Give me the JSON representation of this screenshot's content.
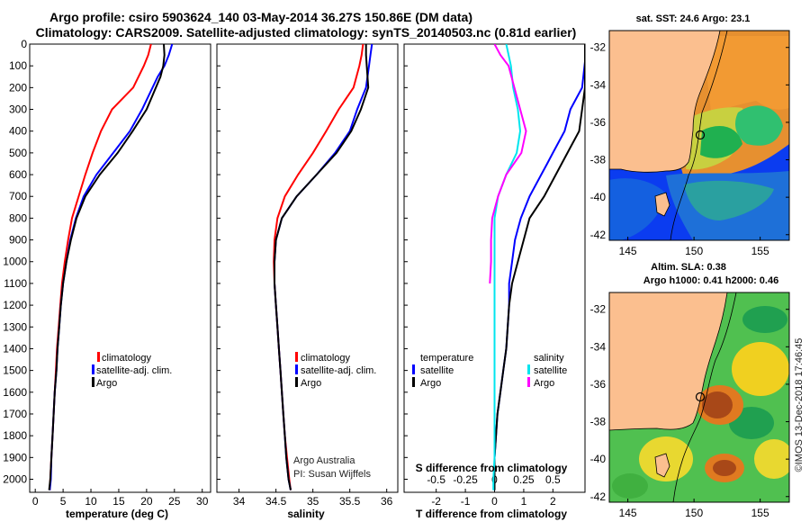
{
  "figure": {
    "title_line1": "Argo profile: csiro 5903624_140 03-May-2014 36.27S 150.86E (DM data)",
    "title_line2": "Climatology: CARS2009. Satellite-adjusted climatology: synTS_20140503.nc (0.81d earlier)",
    "credit": "Argo Australia",
    "pi": "PI: Susan Wijffels",
    "watermark": "©IMOS 13-Dec-2018 17:46:45"
  },
  "legends": {
    "panel1": [
      "climatology",
      "satellite-adj. clim.",
      "Argo"
    ],
    "panel2": [
      "climatology",
      "satellite-adj. clim.",
      "Argo"
    ],
    "panel3_left_title": "temperature",
    "panel3_left": [
      "satellite",
      "Argo"
    ],
    "panel3_right_title": "salinity",
    "panel3_right": [
      "satellite",
      "Argo"
    ]
  },
  "maps": {
    "top_title": "sat. SST: 24.6 Argo: 23.1",
    "bottom_title_1": "Altim. SLA: 0.38",
    "bottom_title_2": "Argo h1000: 0.41 h2000: 0.46",
    "lat_ticks": [
      "-32",
      "-34",
      "-36",
      "-38",
      "-40",
      "-42"
    ],
    "lon_ticks": [
      "145",
      "150",
      "155"
    ],
    "marker": {
      "lat": -36.27,
      "lon": 150.86
    }
  },
  "colors": {
    "climatology": "#ff0000",
    "satellite": "#0000ff",
    "argo": "#000000",
    "sat_temp_diff": "#00e5ee",
    "argo_sal_diff": "#ff00ff",
    "land": "#fbbf8f"
  },
  "chart_data": [
    {
      "type": "line",
      "xlabel": "temperature (deg C)",
      "ylabel": "",
      "xlim": [
        -1,
        31.5
      ],
      "ylim": [
        2060,
        0
      ],
      "xticks": [
        "0",
        "5",
        "10",
        "15",
        "20",
        "25",
        "30"
      ],
      "yticks": [
        "0",
        "100",
        "200",
        "300",
        "400",
        "500",
        "600",
        "700",
        "800",
        "900",
        "1000",
        "1100",
        "1200",
        "1300",
        "1400",
        "1500",
        "1600",
        "1700",
        "1800",
        "1900",
        "2000"
      ],
      "series": [
        {
          "name": "climatology",
          "color": "#ff0000",
          "points": [
            [
              20.8,
              0
            ],
            [
              20.3,
              50
            ],
            [
              19.5,
              100
            ],
            [
              17.6,
              200
            ],
            [
              13.8,
              300
            ],
            [
              11.8,
              400
            ],
            [
              10.3,
              500
            ],
            [
              9.0,
              600
            ],
            [
              7.8,
              700
            ],
            [
              6.6,
              800
            ],
            [
              5.9,
              900
            ],
            [
              5.3,
              1000
            ],
            [
              4.8,
              1100
            ],
            [
              4.5,
              1200
            ],
            [
              4.2,
              1300
            ],
            [
              3.9,
              1400
            ],
            [
              3.7,
              1500
            ],
            [
              3.5,
              1600
            ],
            [
              3.3,
              1700
            ],
            [
              3.1,
              1800
            ],
            [
              2.9,
              1900
            ],
            [
              2.7,
              2000
            ],
            [
              2.6,
              2050
            ]
          ]
        },
        {
          "name": "satellite-adj. clim.",
          "color": "#0000ff",
          "points": [
            [
              24.6,
              0
            ],
            [
              24.0,
              50
            ],
            [
              23.2,
              100
            ],
            [
              22.0,
              150
            ],
            [
              19.2,
              300
            ],
            [
              17.0,
              400
            ],
            [
              14.0,
              500
            ],
            [
              11.0,
              600
            ],
            [
              8.7,
              700
            ],
            [
              7.3,
              800
            ],
            [
              6.3,
              900
            ],
            [
              5.6,
              1000
            ],
            [
              5.0,
              1100
            ],
            [
              4.6,
              1200
            ],
            [
              4.3,
              1300
            ],
            [
              4.0,
              1400
            ],
            [
              3.8,
              1500
            ],
            [
              3.5,
              1600
            ],
            [
              3.3,
              1700
            ],
            [
              3.1,
              1800
            ],
            [
              2.9,
              1900
            ],
            [
              2.8,
              2000
            ],
            [
              2.6,
              2050
            ]
          ]
        },
        {
          "name": "Argo",
          "color": "#000000",
          "points": [
            [
              23.1,
              0
            ],
            [
              23.2,
              50
            ],
            [
              23.0,
              100
            ],
            [
              22.5,
              150
            ],
            [
              20.0,
              300
            ],
            [
              17.5,
              400
            ],
            [
              14.8,
              500
            ],
            [
              11.6,
              600
            ],
            [
              9.0,
              700
            ],
            [
              7.4,
              800
            ],
            [
              6.4,
              900
            ],
            [
              5.6,
              1000
            ],
            [
              5.0,
              1100
            ],
            [
              4.6,
              1200
            ],
            [
              4.3,
              1300
            ],
            [
              4.0,
              1400
            ],
            [
              3.8,
              1500
            ],
            [
              3.5,
              1600
            ],
            [
              3.3,
              1700
            ],
            [
              3.1,
              1800
            ],
            [
              2.9,
              1900
            ],
            [
              2.7,
              2000
            ],
            [
              2.5,
              2050
            ]
          ]
        }
      ]
    },
    {
      "type": "line",
      "xlabel": "salinity",
      "xlim": [
        33.7,
        36.15
      ],
      "ylim": [
        2060,
        0
      ],
      "xticks": [
        "34",
        "34.5",
        "35",
        "35.5",
        "36"
      ],
      "series": [
        {
          "name": "climatology",
          "color": "#ff0000",
          "points": [
            [
              35.68,
              0
            ],
            [
              35.66,
              50
            ],
            [
              35.63,
              100
            ],
            [
              35.55,
              200
            ],
            [
              35.35,
              300
            ],
            [
              35.18,
              400
            ],
            [
              35.0,
              500
            ],
            [
              34.8,
              600
            ],
            [
              34.62,
              700
            ],
            [
              34.52,
              800
            ],
            [
              34.48,
              900
            ],
            [
              34.47,
              1000
            ],
            [
              34.48,
              1100
            ],
            [
              34.5,
              1200
            ],
            [
              34.52,
              1300
            ],
            [
              34.54,
              1400
            ],
            [
              34.56,
              1500
            ],
            [
              34.58,
              1600
            ],
            [
              34.6,
              1700
            ],
            [
              34.62,
              1800
            ],
            [
              34.65,
              1900
            ],
            [
              34.68,
              2000
            ],
            [
              34.7,
              2050
            ]
          ]
        },
        {
          "name": "satellite-adj. clim.",
          "color": "#0000ff",
          "points": [
            [
              35.8,
              0
            ],
            [
              35.78,
              50
            ],
            [
              35.76,
              100
            ],
            [
              35.72,
              200
            ],
            [
              35.6,
              300
            ],
            [
              35.5,
              400
            ],
            [
              35.3,
              500
            ],
            [
              35.05,
              600
            ],
            [
              34.78,
              700
            ],
            [
              34.58,
              800
            ],
            [
              34.5,
              900
            ],
            [
              34.48,
              1000
            ],
            [
              34.48,
              1100
            ],
            [
              34.5,
              1200
            ],
            [
              34.52,
              1300
            ],
            [
              34.54,
              1400
            ],
            [
              34.56,
              1500
            ],
            [
              34.58,
              1600
            ],
            [
              34.6,
              1700
            ],
            [
              34.62,
              1800
            ],
            [
              34.64,
              1900
            ],
            [
              34.67,
              2000
            ],
            [
              34.7,
              2050
            ]
          ]
        },
        {
          "name": "Argo",
          "color": "#000000",
          "points": [
            [
              35.72,
              0
            ],
            [
              35.72,
              50
            ],
            [
              35.73,
              100
            ],
            [
              35.75,
              200
            ],
            [
              35.65,
              300
            ],
            [
              35.52,
              400
            ],
            [
              35.32,
              500
            ],
            [
              35.05,
              600
            ],
            [
              34.78,
              700
            ],
            [
              34.58,
              800
            ],
            [
              34.5,
              900
            ],
            [
              34.48,
              1000
            ],
            [
              34.48,
              1100
            ],
            [
              34.5,
              1200
            ],
            [
              34.52,
              1300
            ],
            [
              34.54,
              1400
            ],
            [
              34.56,
              1500
            ],
            [
              34.58,
              1600
            ],
            [
              34.6,
              1700
            ],
            [
              34.62,
              1800
            ],
            [
              34.64,
              1900
            ],
            [
              34.67,
              2000
            ],
            [
              34.7,
              2050
            ]
          ]
        }
      ]
    },
    {
      "type": "line",
      "xlabel": "T difference from climatology",
      "xlim": [
        -3.1,
        3.1
      ],
      "ylim": [
        2060,
        0
      ],
      "xticks": [
        "-2",
        "-1",
        "0",
        "1",
        "2"
      ],
      "secondary_axis": {
        "label": "S difference from climatology",
        "xlim": [
          -0.775,
          0.775
        ],
        "ticks": [
          "-0.5",
          "-0.25",
          "0",
          "0.25",
          "0.5"
        ]
      },
      "series": [
        {
          "name": "satellite (temperature)",
          "color": "#0000ff",
          "points": [
            [
              3.1,
              0
            ],
            [
              3.1,
              80
            ],
            [
              3.0,
              200
            ],
            [
              2.6,
              300
            ],
            [
              2.4,
              400
            ],
            [
              2.0,
              500
            ],
            [
              1.8,
              550
            ],
            [
              1.6,
              600
            ],
            [
              1.2,
              700
            ],
            [
              0.9,
              800
            ],
            [
              0.8,
              850
            ],
            [
              0.7,
              900
            ],
            [
              0.6,
              1000
            ],
            [
              0.5,
              1100
            ],
            [
              0.5,
              1200
            ],
            [
              0.45,
              1300
            ],
            [
              0.4,
              1400
            ],
            [
              0.3,
              1500
            ],
            [
              0.2,
              1600
            ],
            [
              0.1,
              1700
            ],
            [
              0.05,
              1800
            ],
            [
              0.0,
              1900
            ],
            [
              0.0,
              2000
            ],
            [
              0.0,
              2050
            ]
          ]
        },
        {
          "name": "Argo (temperature)",
          "color": "#000000",
          "points": [
            [
              3.1,
              0
            ],
            [
              3.1,
              200
            ],
            [
              3.0,
              300
            ],
            [
              2.9,
              400
            ],
            [
              2.5,
              500
            ],
            [
              2.1,
              600
            ],
            [
              1.7,
              700
            ],
            [
              1.2,
              800
            ],
            [
              1.0,
              900
            ],
            [
              0.8,
              1000
            ],
            [
              0.6,
              1100
            ],
            [
              0.5,
              1200
            ],
            [
              0.45,
              1300
            ],
            [
              0.4,
              1400
            ],
            [
              0.3,
              1500
            ],
            [
              0.2,
              1600
            ],
            [
              0.1,
              1700
            ],
            [
              0.05,
              1800
            ],
            [
              0.0,
              1900
            ],
            [
              0.0,
              2000
            ],
            [
              0.0,
              2050
            ]
          ]
        },
        {
          "name": "satellite (salinity)",
          "color": "#00e5ee",
          "points": [
            [
              0.1,
              0
            ],
            [
              0.12,
              50
            ],
            [
              0.14,
              100
            ],
            [
              0.16,
              200
            ],
            [
              0.2,
              300
            ],
            [
              0.22,
              400
            ],
            [
              0.19,
              500
            ],
            [
              0.1,
              600
            ],
            [
              0.03,
              700
            ],
            [
              0.0,
              800
            ],
            [
              0.0,
              900
            ],
            [
              0.0,
              1000
            ],
            [
              0.0,
              1100
            ],
            [
              0.0,
              1300
            ],
            [
              0.0,
              1500
            ],
            [
              0.0,
              1700
            ],
            [
              0.0,
              1900
            ],
            [
              -0.01,
              2000
            ],
            [
              -0.01,
              2050
            ]
          ]
        },
        {
          "name": "Argo (salinity)",
          "color": "#ff00ff",
          "points": [
            [
              0.0,
              0
            ],
            [
              0.05,
              50
            ],
            [
              0.12,
              100
            ],
            [
              0.17,
              200
            ],
            [
              0.22,
              300
            ],
            [
              0.27,
              400
            ],
            [
              0.23,
              500
            ],
            [
              0.1,
              600
            ],
            [
              0.03,
              700
            ],
            [
              -0.02,
              800
            ],
            [
              -0.03,
              900
            ],
            [
              -0.03,
              1000
            ],
            [
              -0.04,
              1100
            ]
          ]
        }
      ]
    }
  ]
}
